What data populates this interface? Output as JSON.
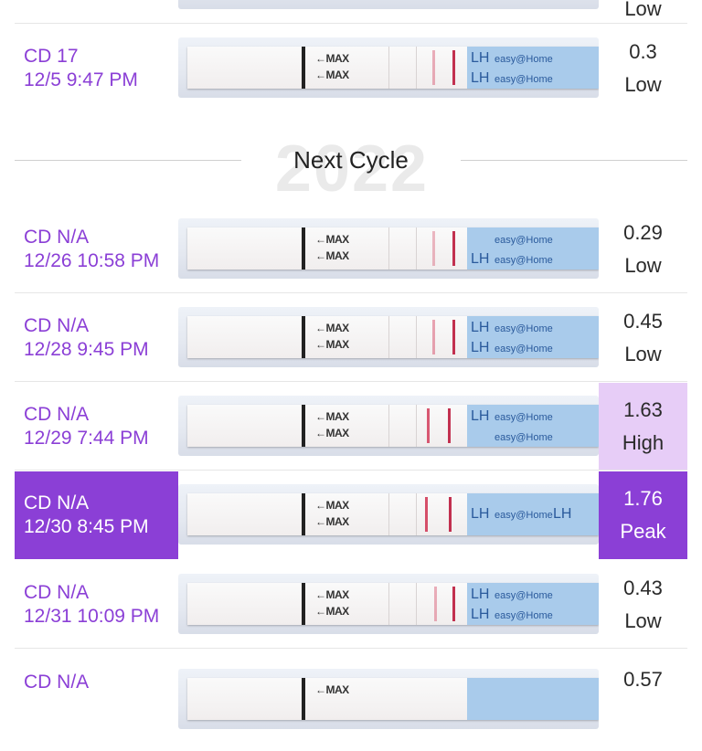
{
  "colors": {
    "accent": "#8b3fd6",
    "high_bg": "#e7cdf7",
    "peak_bg": "#8b3fd6"
  },
  "top_partial": {
    "status": "Low"
  },
  "row_cd17": {
    "cd": "CD 17",
    "datetime": "12/5 9:47 PM",
    "value": "0.3",
    "status": "Low"
  },
  "cycle_divider": {
    "watermark": "2022",
    "title": "Next Cycle"
  },
  "rows": [
    {
      "cd": "CD N/A",
      "datetime": "12/26 10:58 PM",
      "value": "0.29",
      "status": "Low"
    },
    {
      "cd": "CD N/A",
      "datetime": "12/28 9:45 PM",
      "value": "0.45",
      "status": "Low"
    },
    {
      "cd": "CD N/A",
      "datetime": "12/29 7:44 PM",
      "value": "1.63",
      "status": "High"
    },
    {
      "cd": "CD N/A",
      "datetime": "12/30 8:45 PM",
      "value": "1.76",
      "status": "Peak"
    },
    {
      "cd": "CD N/A",
      "datetime": "12/31 10:09 PM",
      "value": "0.43",
      "status": "Low"
    },
    {
      "cd": "CD N/A",
      "value": "0.57"
    }
  ],
  "strip_text": {
    "max": "←MAX",
    "lh": "LH",
    "brand": "easy@Home"
  }
}
